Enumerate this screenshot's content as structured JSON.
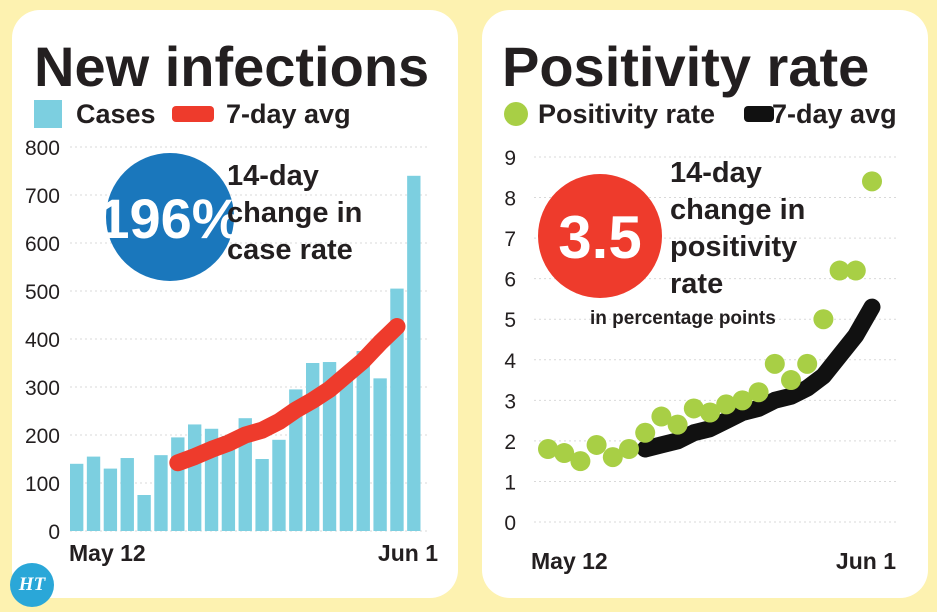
{
  "colors": {
    "background": "#fdf2b0",
    "bar": "#7ccfe0",
    "avg_red": "#ee3b2c",
    "dot_green": "#a8cf45",
    "avg_black": "#111111",
    "badge_blue": "#1a77bc",
    "badge_red": "#ee3b2c"
  },
  "logo": {
    "text": "HT"
  },
  "chart_data": [
    {
      "type": "bar",
      "title": "New infections",
      "legend": [
        "Cases",
        "7-day avg"
      ],
      "ylim": [
        0,
        800
      ],
      "yticks": [
        "0",
        "100",
        "200",
        "300",
        "400",
        "500",
        "600",
        "700",
        "800"
      ],
      "x_labels": [
        "May 12",
        "Jun 1"
      ],
      "grid": true,
      "series": [
        {
          "name": "Cases",
          "values": [
            140,
            155,
            130,
            152,
            75,
            158,
            195,
            222,
            213,
            198,
            235,
            150,
            190,
            295,
            350,
            352,
            330,
            375,
            318,
            505,
            740
          ]
        },
        {
          "name": "7-day avg",
          "values": [
            null,
            null,
            null,
            null,
            null,
            null,
            142,
            155,
            170,
            183,
            200,
            210,
            228,
            252,
            272,
            295,
            325,
            355,
            392,
            426,
            null
          ]
        }
      ],
      "callout": {
        "badge": "196%",
        "lines": [
          "14-day",
          "change in",
          "case rate"
        ]
      }
    },
    {
      "type": "scatter",
      "title": "Positivity rate",
      "legend": [
        "Positivity rate",
        "7-day avg"
      ],
      "ylim": [
        0,
        9
      ],
      "yticks": [
        "0",
        "1",
        "2",
        "3",
        "4",
        "5",
        "6",
        "7",
        "8",
        "9"
      ],
      "x_labels": [
        "May 12",
        "Jun 1"
      ],
      "grid": true,
      "series": [
        {
          "name": "Positivity rate",
          "values": [
            1.8,
            1.7,
            1.5,
            1.9,
            1.6,
            1.8,
            2.2,
            2.6,
            2.4,
            2.8,
            2.7,
            2.9,
            3.0,
            3.2,
            3.9,
            3.5,
            3.9,
            5.0,
            6.2,
            6.2,
            8.4
          ]
        },
        {
          "name": "7-day avg",
          "values": [
            null,
            null,
            null,
            null,
            null,
            null,
            1.8,
            1.9,
            2.0,
            2.2,
            2.3,
            2.5,
            2.7,
            2.8,
            3.0,
            3.1,
            3.3,
            3.6,
            4.1,
            4.6,
            5.3
          ]
        }
      ],
      "callout": {
        "badge": "3.5",
        "lines": [
          "14-day",
          "change in",
          "positivity",
          "rate"
        ],
        "note": "in percentage points"
      }
    }
  ]
}
